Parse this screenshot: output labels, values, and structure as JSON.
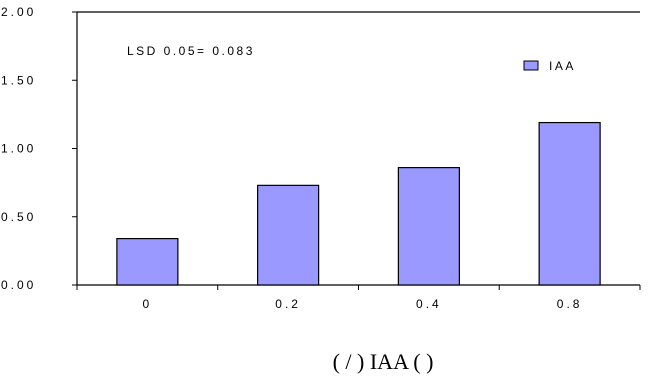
{
  "chart_data": {
    "type": "bar",
    "categories": [
      "0",
      "0.2",
      "0.4",
      "0.8"
    ],
    "series": [
      {
        "name": "IAA",
        "values": [
          0.34,
          0.73,
          0.86,
          1.19
        ]
      }
    ],
    "y_ticks": [
      "0.00",
      "0.50",
      "1.00",
      "1.50",
      "2.00"
    ],
    "ylim": [
      0,
      2
    ],
    "annotation": "LSD 0.05= 0.083",
    "xlabel": "(   /   ) IAA (   )",
    "legend_position": "top-right",
    "grid": false,
    "colors": {
      "bar_fill": "#9999ff",
      "bar_stroke": "#000000",
      "axis": "#000000"
    }
  }
}
